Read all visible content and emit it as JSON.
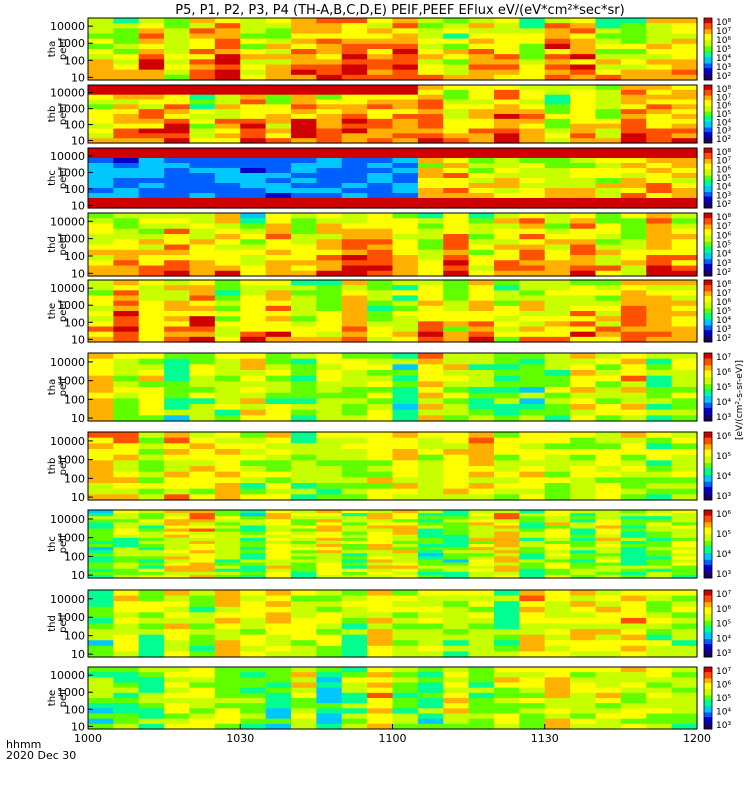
{
  "chart_data": {
    "type": "heatmap",
    "title": "P5, P1, P2, P3, P4 (TH-A,B,C,D,E) PEIF,PEEF EFlux eV/(eV*cm²*sec*sr)",
    "x_label_line1": "hhmm",
    "x_label_line2": "2020 Dec 30",
    "x_ticks": [
      "1000",
      "1030",
      "1100",
      "1130",
      "1200"
    ],
    "x_range": [
      "10:00",
      "12:00"
    ],
    "x_minutes": [
      0,
      30,
      60,
      90,
      120
    ],
    "y_scale": "log",
    "y_range_eV": [
      7,
      30000
    ],
    "y_tick_values": [
      10,
      100,
      1000,
      10000
    ],
    "y_ticks": [
      "10",
      "100",
      "1000",
      "10000"
    ],
    "colorbar_unit": "[eV/(cm²-s-sr-eV)]",
    "colormap": [
      "#1a0060",
      "#0000c8",
      "#0060ff",
      "#00c8ff",
      "#00ff90",
      "#60ff00",
      "#c8ff00",
      "#ffff00",
      "#ffb000",
      "#ff5000",
      "#d00000"
    ],
    "panels": [
      {
        "id": "tha-peef",
        "label": "tha peef",
        "species": "electrons",
        "cb_ticks": [
          "10⁸",
          "10⁷",
          "10⁶",
          "10⁵",
          "10⁴",
          "10³",
          "10²"
        ],
        "seed": 11
      },
      {
        "id": "thb-peef",
        "label": "thb peef",
        "species": "electrons",
        "cb_ticks": [
          "10⁸",
          "10⁷",
          "10⁶",
          "10⁵",
          "10⁴",
          "10³",
          "10²"
        ],
        "seed": 12
      },
      {
        "id": "thc-peef",
        "label": "thc peef",
        "species": "electrons",
        "cb_ticks": [
          "10⁸",
          "10⁷",
          "10⁶",
          "10⁵",
          "10⁴",
          "10³",
          "10²"
        ],
        "seed": 13
      },
      {
        "id": "thd-peef",
        "label": "thd peef",
        "species": "electrons",
        "cb_ticks": [
          "10⁸",
          "10⁷",
          "10⁶",
          "10⁵",
          "10⁴",
          "10³",
          "10²"
        ],
        "seed": 14
      },
      {
        "id": "the-peef",
        "label": "the peef",
        "species": "electrons",
        "cb_ticks": [
          "10⁸",
          "10⁷",
          "10⁶",
          "10⁵",
          "10⁴",
          "10³",
          "10²"
        ],
        "seed": 15
      },
      {
        "id": "tha-peif",
        "label": "tha peif",
        "species": "ions",
        "cb_ticks": [
          "10⁷",
          "10⁶",
          "10⁵",
          "10⁴",
          "10³"
        ],
        "seed": 21
      },
      {
        "id": "thb-peif",
        "label": "thb peif",
        "species": "ions",
        "cb_ticks": [
          "10⁶",
          "10⁵",
          "10⁴",
          "10³"
        ],
        "seed": 22
      },
      {
        "id": "thc-peif",
        "label": "thc peif",
        "species": "ions",
        "cb_ticks": [
          "10⁶",
          "10⁵",
          "10⁴",
          "10³"
        ],
        "seed": 23
      },
      {
        "id": "thd-peif",
        "label": "thd peif",
        "species": "ions",
        "cb_ticks": [
          "10⁷",
          "10⁶",
          "10⁵",
          "10⁴",
          "10³"
        ],
        "seed": 24
      },
      {
        "id": "the-peif",
        "label": "the peif",
        "species": "ions",
        "cb_ticks": [
          "10⁷",
          "10⁶",
          "10⁵",
          "10⁴",
          "10³"
        ],
        "seed": 25
      }
    ]
  }
}
